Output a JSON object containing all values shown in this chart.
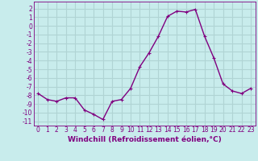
{
  "x": [
    0,
    1,
    2,
    3,
    4,
    5,
    6,
    7,
    8,
    9,
    10,
    11,
    12,
    13,
    14,
    15,
    16,
    17,
    18,
    19,
    20,
    21,
    22,
    23
  ],
  "y": [
    -7.8,
    -8.5,
    -8.7,
    -8.3,
    -8.3,
    -9.7,
    -10.2,
    -10.8,
    -8.7,
    -8.5,
    -7.2,
    -4.7,
    -3.1,
    -1.2,
    1.1,
    1.7,
    1.6,
    1.9,
    -1.2,
    -3.7,
    -6.7,
    -7.5,
    -7.8,
    -7.2
  ],
  "line_color": "#800080",
  "marker": "+",
  "marker_size": 3,
  "bg_color": "#c8ecec",
  "grid_color": "#b0d4d4",
  "xlabel": "Windchill (Refroidissement éolien,°C)",
  "ylabel_ticks": [
    2,
    1,
    0,
    -1,
    -2,
    -3,
    -4,
    -5,
    -6,
    -7,
    -8,
    -9,
    -10,
    -11
  ],
  "ylim": [
    -11.5,
    2.8
  ],
  "xlim": [
    -0.5,
    23.5
  ],
  "xlabel_fontsize": 6.5,
  "tick_fontsize": 5.5,
  "line_width": 1.0
}
